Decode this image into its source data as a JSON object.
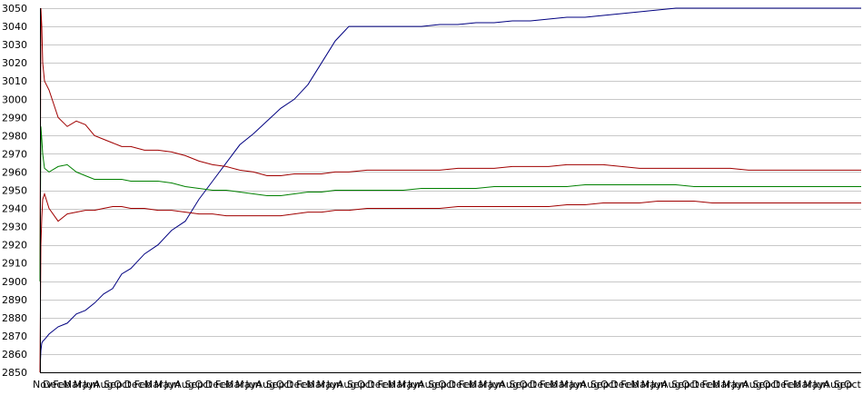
{
  "chart_data": {
    "type": "line",
    "title": "",
    "xlabel": "",
    "ylabel": "",
    "ylim": [
      2850,
      3050
    ],
    "y_ticks": [
      2850,
      2860,
      2870,
      2880,
      2890,
      2900,
      2910,
      2920,
      2930,
      2940,
      2950,
      2960,
      2970,
      2980,
      2990,
      3000,
      3010,
      3020,
      3030,
      3040,
      3050
    ],
    "grid": true,
    "legend": "none",
    "x_tick_labels": [
      "Nov",
      "Dec",
      "Feb",
      "Mar",
      "May",
      "Jun",
      "Aug",
      "Sep",
      "Oct",
      "Dec",
      "Feb",
      "Mar",
      "May",
      "Jun",
      "Aug",
      "Sep",
      "Oct",
      "Dec",
      "Feb",
      "Mar",
      "May",
      "Jun",
      "Aug",
      "Sep",
      "Oct",
      "Dec",
      "Feb",
      "Mar",
      "May",
      "Jun",
      "Aug",
      "Sep",
      "Oct",
      "Dec",
      "Feb",
      "Mar",
      "May",
      "Jun",
      "Aug",
      "Sep",
      "Oct",
      "Dec",
      "Feb",
      "Mar",
      "May",
      "Jun",
      "Aug",
      "Sep",
      "Oct",
      "Dec",
      "Feb",
      "Mar",
      "May",
      "Jun",
      "Aug",
      "Sep",
      "Oct",
      "Dec",
      "Feb",
      "Mar",
      "May",
      "Jun",
      "Aug",
      "Sep",
      "Oct",
      "Dec",
      "Feb",
      "Mar",
      "May",
      "Jun",
      "Aug",
      "Sep",
      "Oct",
      "Dec",
      "Feb",
      "Mar",
      "May",
      "Jun",
      "Aug",
      "Sep",
      "Oct"
    ],
    "x": [
      0,
      1,
      2,
      3,
      5,
      10,
      20,
      30,
      40,
      50,
      60,
      70,
      80,
      90,
      100,
      115,
      130,
      145,
      160,
      175,
      190,
      205,
      220,
      235,
      250,
      265,
      280,
      295,
      310,
      325,
      340,
      360,
      380,
      400,
      420,
      440,
      460,
      480,
      500,
      520,
      540,
      560,
      580,
      600,
      620,
      640,
      660,
      680,
      700,
      720,
      740,
      760,
      780,
      800,
      820,
      840,
      860,
      880,
      900,
      904
    ],
    "series": [
      {
        "color": "#000080",
        "values": [
          2850,
          2862,
          2866,
          2867,
          2868,
          2871,
          2875,
          2877,
          2882,
          2884,
          2888,
          2893,
          2896,
          2904,
          2907,
          2915,
          2920,
          2928,
          2933,
          2945,
          2955,
          2965,
          2975,
          2981,
          2988,
          2995,
          3000,
          3008,
          3020,
          3032,
          3040,
          3040,
          3040,
          3040,
          3040,
          3041,
          3041,
          3042,
          3042,
          3043,
          3043,
          3044,
          3045,
          3045,
          3046,
          3047,
          3048,
          3049,
          3050,
          3050,
          3050,
          3050,
          3050,
          3050,
          3050,
          3050,
          3050,
          3050,
          3050,
          3050
        ]
      },
      {
        "color": "#a00000",
        "values": [
          2900,
          3050,
          3040,
          3020,
          3010,
          3005,
          2990,
          2985,
          2988,
          2986,
          2980,
          2978,
          2976,
          2974,
          2974,
          2972,
          2972,
          2971,
          2969,
          2966,
          2964,
          2963,
          2961,
          2960,
          2958,
          2958,
          2959,
          2959,
          2959,
          2960,
          2960,
          2961,
          2961,
          2961,
          2961,
          2961,
          2962,
          2962,
          2962,
          2963,
          2963,
          2963,
          2964,
          2964,
          2964,
          2963,
          2962,
          2962,
          2962,
          2962,
          2962,
          2962,
          2961,
          2961,
          2961,
          2961,
          2961,
          2961,
          2961,
          2961
        ]
      },
      {
        "color": "#008000",
        "values": [
          2900,
          2985,
          2978,
          2970,
          2962,
          2960,
          2963,
          2964,
          2960,
          2958,
          2956,
          2956,
          2956,
          2956,
          2955,
          2955,
          2955,
          2954,
          2952,
          2951,
          2950,
          2950,
          2949,
          2948,
          2947,
          2947,
          2948,
          2949,
          2949,
          2950,
          2950,
          2950,
          2950,
          2950,
          2951,
          2951,
          2951,
          2951,
          2952,
          2952,
          2952,
          2952,
          2952,
          2953,
          2953,
          2953,
          2953,
          2953,
          2953,
          2952,
          2952,
          2952,
          2952,
          2952,
          2952,
          2952,
          2952,
          2952,
          2952,
          2952
        ]
      },
      {
        "color": "#a00000",
        "values": [
          2850,
          2920,
          2935,
          2945,
          2948,
          2940,
          2933,
          2937,
          2938,
          2939,
          2939,
          2940,
          2941,
          2941,
          2940,
          2940,
          2939,
          2939,
          2938,
          2937,
          2937,
          2936,
          2936,
          2936,
          2936,
          2936,
          2937,
          2938,
          2938,
          2939,
          2939,
          2940,
          2940,
          2940,
          2940,
          2940,
          2941,
          2941,
          2941,
          2941,
          2941,
          2941,
          2942,
          2942,
          2943,
          2943,
          2943,
          2944,
          2944,
          2944,
          2943,
          2943,
          2943,
          2943,
          2943,
          2943,
          2943,
          2943,
          2943,
          2943
        ]
      }
    ]
  }
}
